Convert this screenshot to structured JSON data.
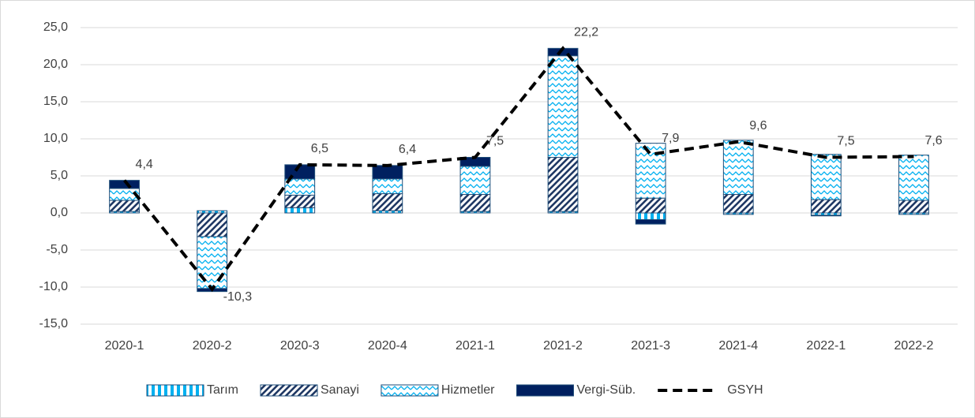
{
  "chart_data": {
    "type": "bar",
    "categories": [
      "2020-1",
      "2020-2",
      "2020-3",
      "2020-4",
      "2021-1",
      "2021-2",
      "2021-3",
      "2021-4",
      "2022-1",
      "2022-2"
    ],
    "series": [
      {
        "name": "Tarım",
        "color": "#00b0f0",
        "pattern": "vertical",
        "values": [
          0.2,
          0.3,
          0.7,
          0.3,
          0.2,
          0.2,
          -0.9,
          -0.2,
          -0.3,
          -0.2
        ]
      },
      {
        "name": "Sanayi",
        "color": "#1f3864",
        "pattern": "diagonal",
        "values": [
          1.5,
          -3.2,
          1.7,
          2.3,
          2.3,
          7.3,
          2.0,
          2.5,
          1.8,
          1.7
        ]
      },
      {
        "name": "Hizmetler",
        "color": "#00b0f0",
        "pattern": "zigzag",
        "values": [
          1.6,
          -7.0,
          2.2,
          2.0,
          3.8,
          13.7,
          7.4,
          7.3,
          6.1,
          6.1
        ]
      },
      {
        "name": "Vergi-Süb.",
        "color": "#002060",
        "pattern": "solid",
        "values": [
          1.1,
          -0.4,
          1.9,
          1.8,
          1.2,
          1.0,
          -0.6,
          0,
          -0.1,
          0
        ]
      },
      {
        "name": "GSYH",
        "type": "line",
        "color": "#000000",
        "values": [
          4.4,
          -10.3,
          6.5,
          6.4,
          7.5,
          22.2,
          7.9,
          9.6,
          7.5,
          7.6
        ],
        "value_labels": [
          "4,4",
          "-10,3",
          "6,5",
          "6,4",
          "7,5",
          "22,2",
          "7,9",
          "9,6",
          "7,5",
          "7,6"
        ]
      }
    ],
    "ylim": [
      -15,
      25
    ],
    "yticks": [
      {
        "value": -15,
        "label": "-15,0"
      },
      {
        "value": -10,
        "label": "-10,0"
      },
      {
        "value": -5,
        "label": "-5,0"
      },
      {
        "value": 0,
        "label": "0,0"
      },
      {
        "value": 5,
        "label": "5,0"
      },
      {
        "value": 10,
        "label": "10,0"
      },
      {
        "value": 15,
        "label": "15,0"
      },
      {
        "value": 20,
        "label": "20,0"
      },
      {
        "value": 25,
        "label": "25,0"
      }
    ],
    "grid": true,
    "legend": "bottom"
  }
}
